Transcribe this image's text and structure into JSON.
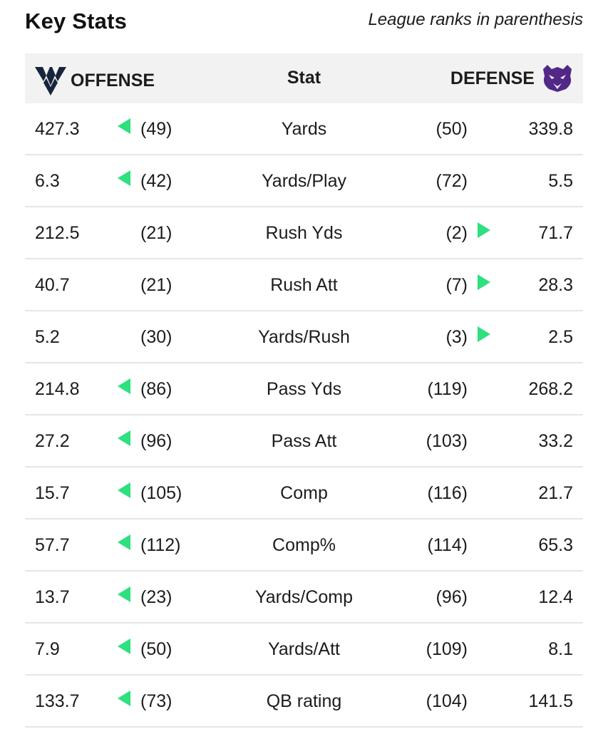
{
  "header": {
    "title": "Key Stats",
    "note": "League ranks in parenthesis"
  },
  "table": {
    "offense_label": "OFFENSE",
    "stat_label": "Stat",
    "defense_label": "DEFENSE",
    "offense_logo": "wv-logo-icon",
    "defense_logo": "wildcat-logo-icon",
    "arrow_color": "#2ee07e",
    "rows": [
      {
        "offense": "427.3",
        "offense_rank": "(49)",
        "stat": "Yards",
        "defense_rank": "(50)",
        "defense": "339.8",
        "advantage": "offense"
      },
      {
        "offense": "6.3",
        "offense_rank": "(42)",
        "stat": "Yards/Play",
        "defense_rank": "(72)",
        "defense": "5.5",
        "advantage": "offense"
      },
      {
        "offense": "212.5",
        "offense_rank": "(21)",
        "stat": "Rush Yds",
        "defense_rank": "(2)",
        "defense": "71.7",
        "advantage": "defense"
      },
      {
        "offense": "40.7",
        "offense_rank": "(21)",
        "stat": "Rush Att",
        "defense_rank": "(7)",
        "defense": "28.3",
        "advantage": "defense"
      },
      {
        "offense": "5.2",
        "offense_rank": "(30)",
        "stat": "Yards/Rush",
        "defense_rank": "(3)",
        "defense": "2.5",
        "advantage": "defense"
      },
      {
        "offense": "214.8",
        "offense_rank": "(86)",
        "stat": "Pass Yds",
        "defense_rank": "(119)",
        "defense": "268.2",
        "advantage": "offense"
      },
      {
        "offense": "27.2",
        "offense_rank": "(96)",
        "stat": "Pass Att",
        "defense_rank": "(103)",
        "defense": "33.2",
        "advantage": "offense"
      },
      {
        "offense": "15.7",
        "offense_rank": "(105)",
        "stat": "Comp",
        "defense_rank": "(116)",
        "defense": "21.7",
        "advantage": "offense"
      },
      {
        "offense": "57.7",
        "offense_rank": "(112)",
        "stat": "Comp%",
        "defense_rank": "(114)",
        "defense": "65.3",
        "advantage": "offense"
      },
      {
        "offense": "13.7",
        "offense_rank": "(23)",
        "stat": "Yards/Comp",
        "defense_rank": "(96)",
        "defense": "12.4",
        "advantage": "offense"
      },
      {
        "offense": "7.9",
        "offense_rank": "(50)",
        "stat": "Yards/Att",
        "defense_rank": "(109)",
        "defense": "8.1",
        "advantage": "offense"
      },
      {
        "offense": "133.7",
        "offense_rank": "(73)",
        "stat": "QB rating",
        "defense_rank": "(104)",
        "defense": "141.5",
        "advantage": "offense"
      }
    ]
  }
}
